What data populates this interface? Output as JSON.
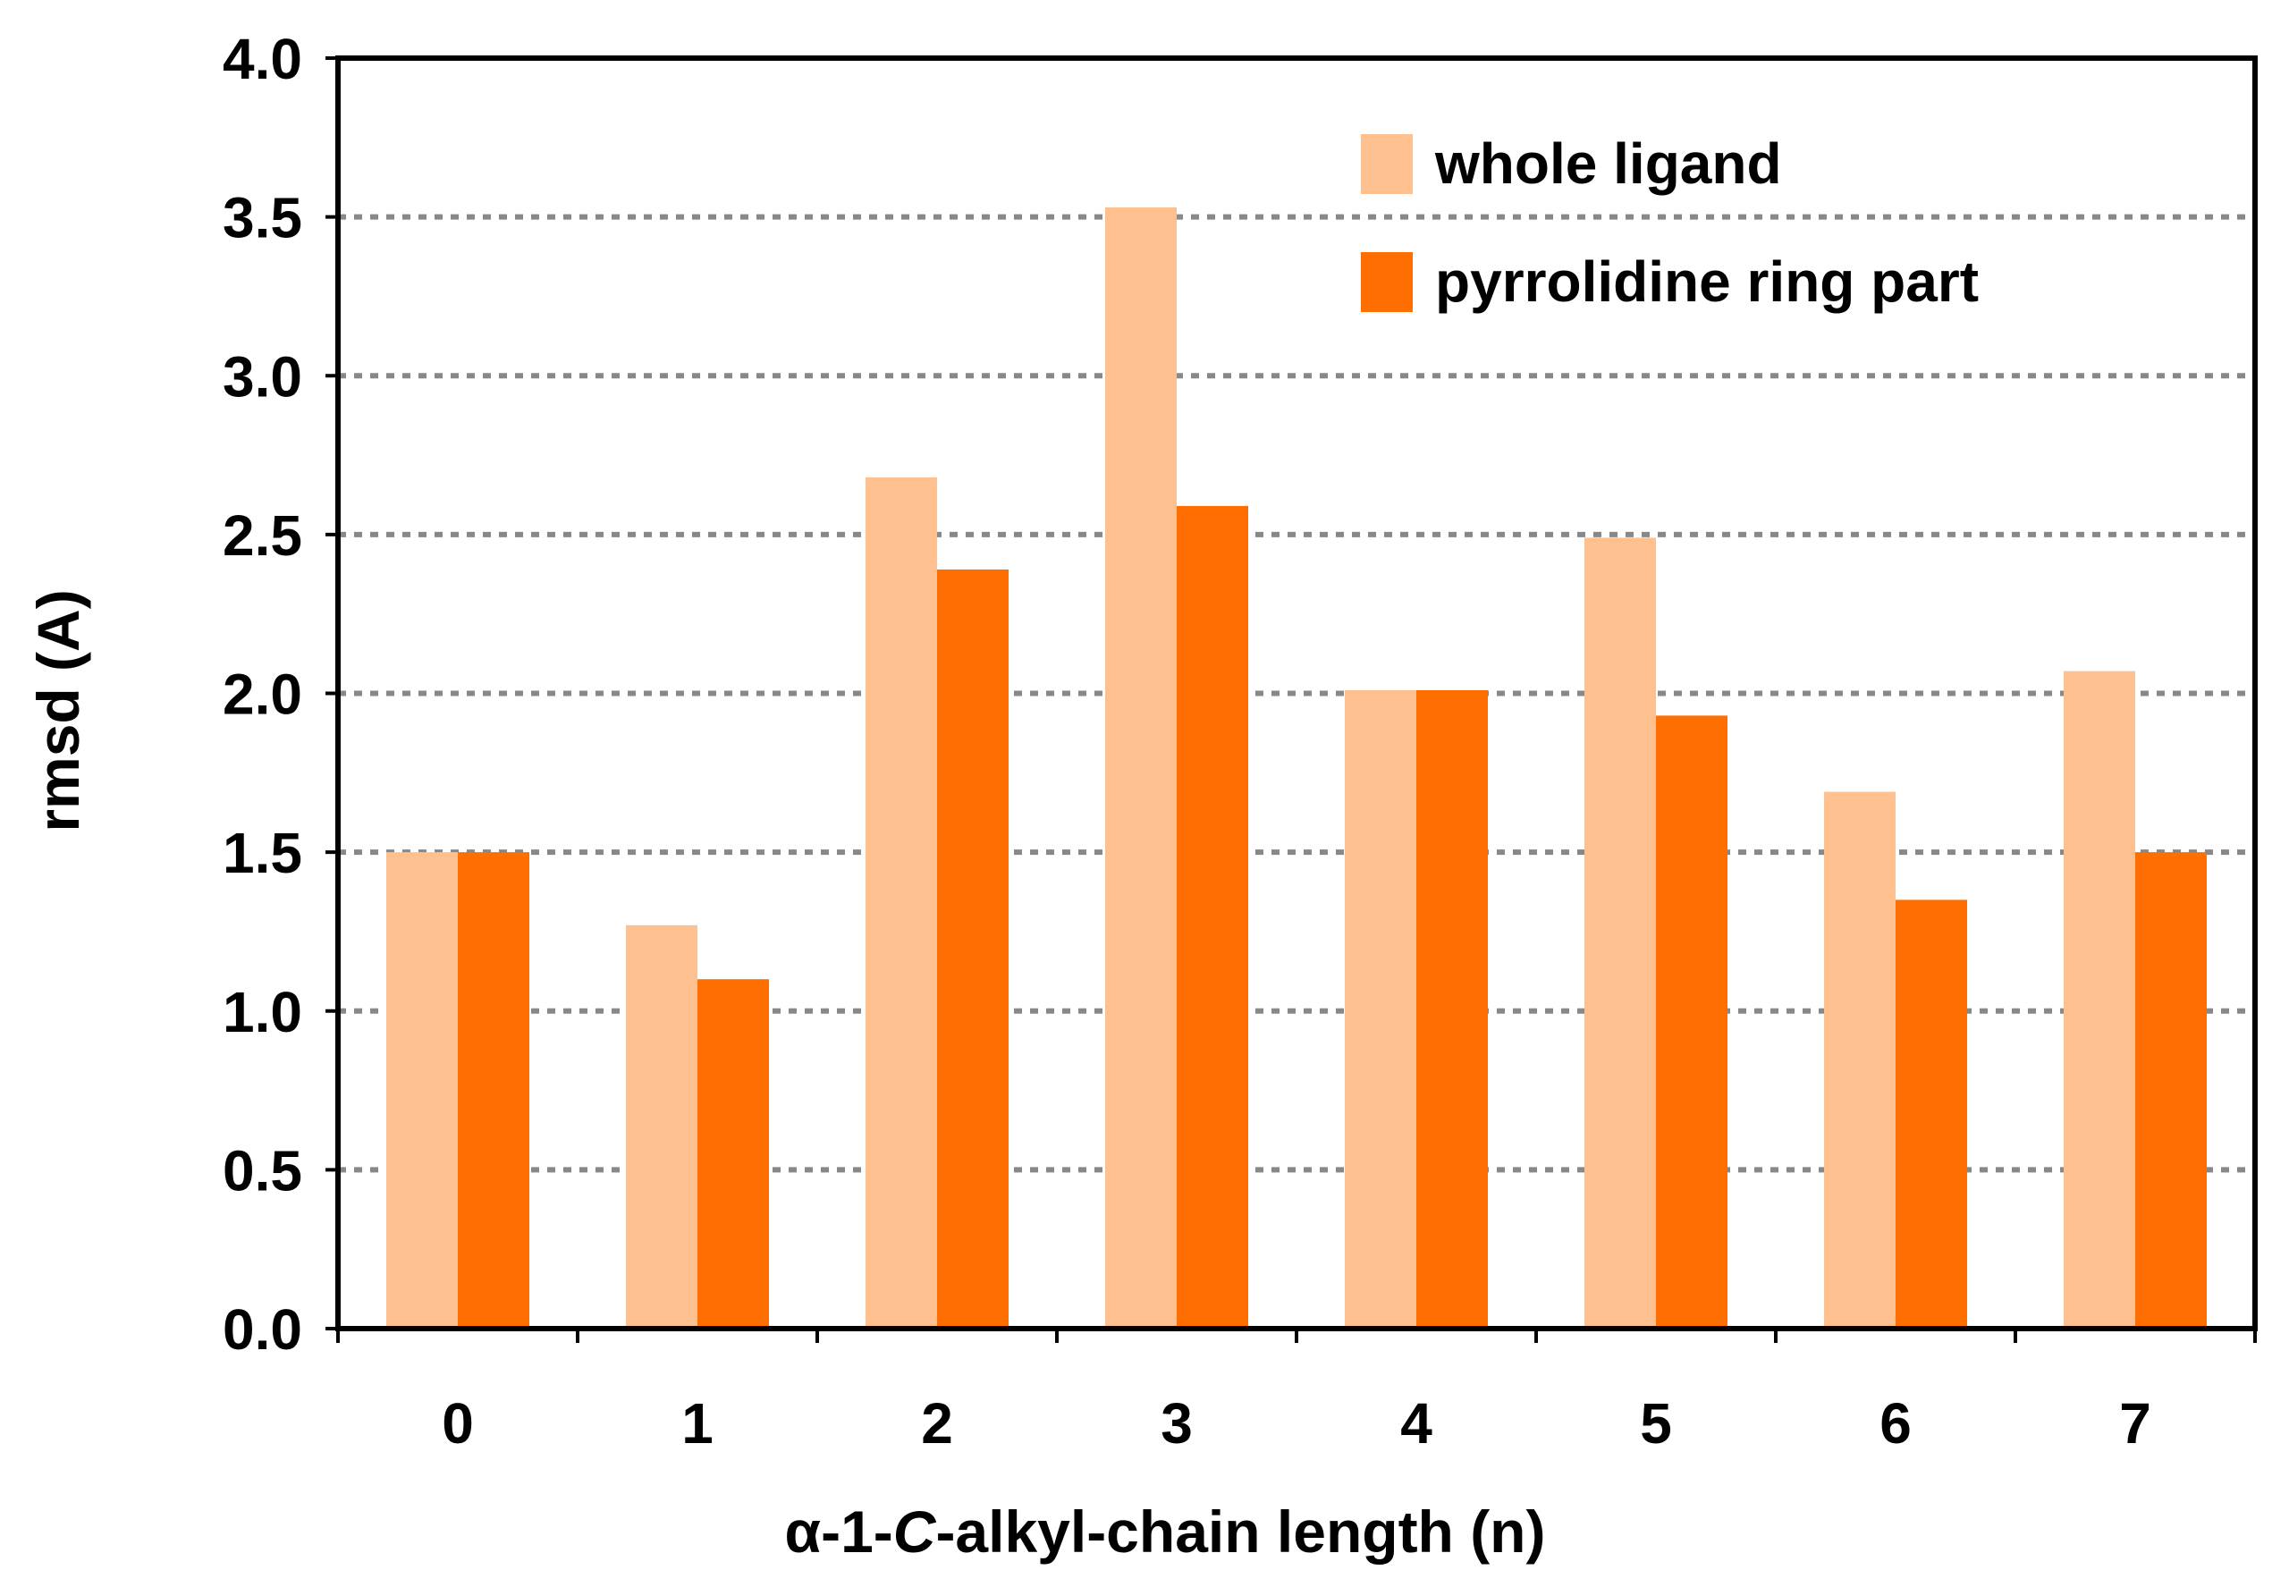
{
  "chart_data": {
    "type": "bar",
    "title": "",
    "xlabel": "α-1-C-alkyl-chain length (n)",
    "xlabel_parts": [
      "α-1-",
      "C",
      "-alkyl-chain length (n)"
    ],
    "ylabel": "rmsd (A)",
    "categories": [
      "0",
      "1",
      "2",
      "3",
      "4",
      "5",
      "6",
      "7"
    ],
    "series": [
      {
        "name": "whole ligand",
        "color": "#FDC08E",
        "values": [
          1.5,
          1.27,
          2.68,
          3.53,
          2.01,
          2.49,
          1.69,
          2.07
        ]
      },
      {
        "name": "pyrrolidine ring part",
        "color": "#FF6E00",
        "values": [
          1.5,
          1.1,
          2.39,
          2.59,
          2.01,
          1.93,
          1.35,
          1.5
        ]
      }
    ],
    "ylim": [
      0,
      4.0
    ],
    "yticks": [
      "0.0",
      "0.5",
      "1.0",
      "1.5",
      "2.0",
      "2.5",
      "3.0",
      "3.5",
      "4.0"
    ],
    "grid": true,
    "legend_position": "top-right"
  }
}
